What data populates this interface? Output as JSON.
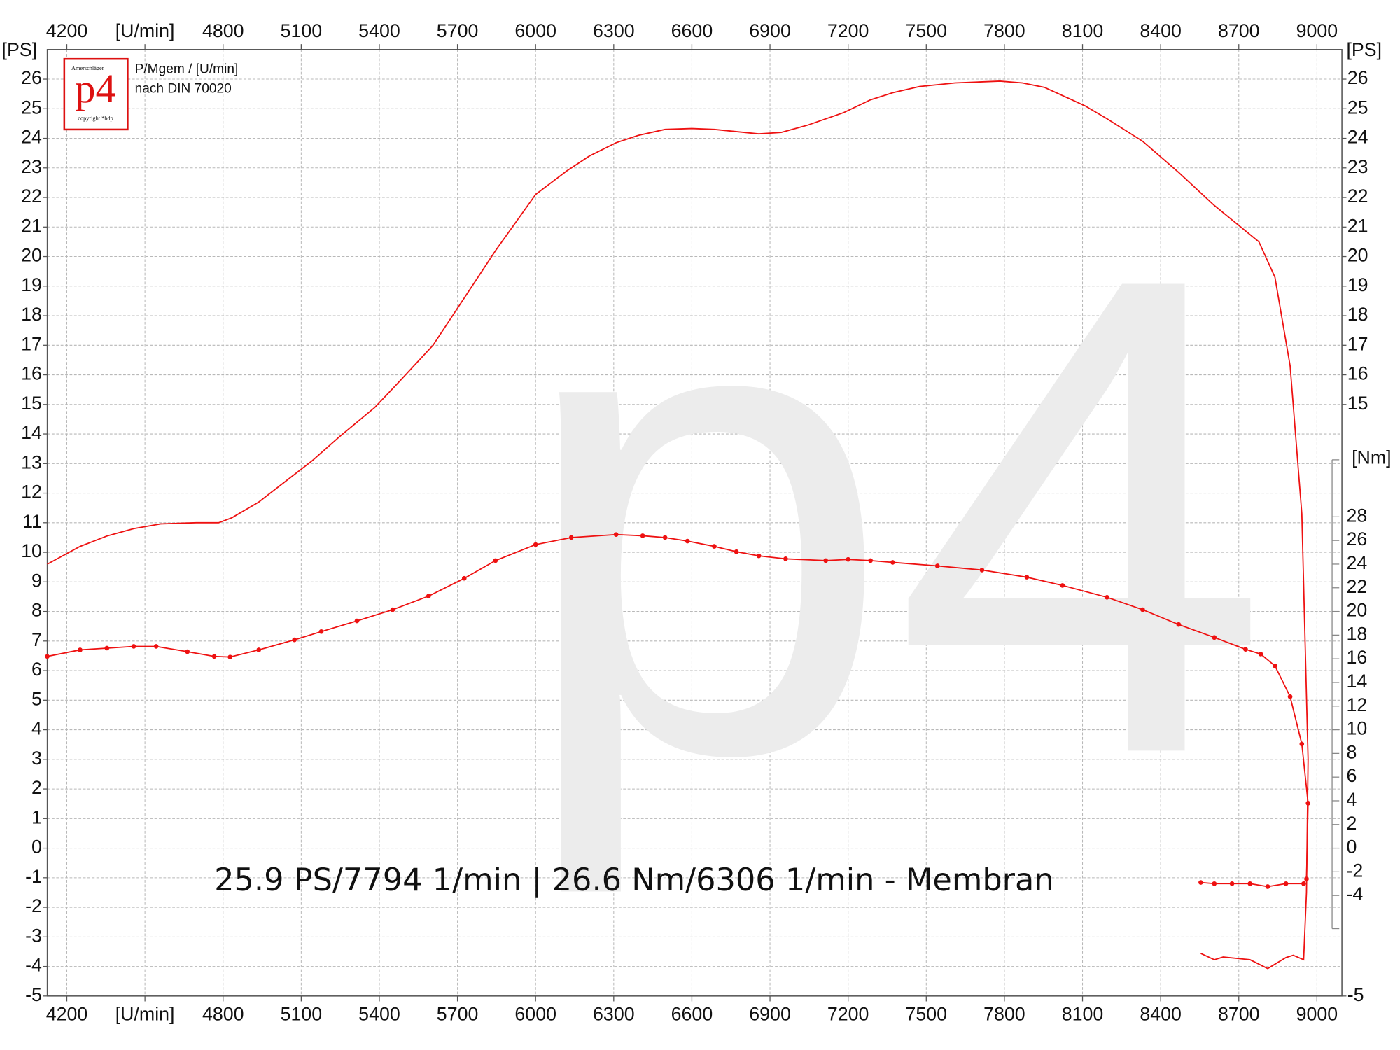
{
  "chart_data": {
    "type": "line",
    "ylabel": "[PS]",
    "y2label": "[Nm]",
    "subtitle_lines": [
      "P/Mgem / [U/min]",
      "nach DIN 70020"
    ],
    "logo": {
      "brand": "p4",
      "name": "Amerschläger",
      "copyright": "copyright *hdp"
    },
    "watermark": "p4",
    "annotation": "25.9 PS/7794 1/min | 26.6 Nm/6306 1/min - Membran",
    "xlim": [
      4125,
      9096
    ],
    "xticks": [
      4200,
      {
        "value": 4500,
        "label": "[U/min]"
      },
      4800,
      5100,
      5400,
      5700,
      6000,
      6300,
      6600,
      6900,
      7200,
      7500,
      7800,
      8100,
      8400,
      8700,
      9000
    ],
    "ylim": [
      -5,
      27
    ],
    "yticks": [
      -5,
      -4,
      -3,
      -2,
      -1,
      0,
      1,
      2,
      3,
      4,
      5,
      6,
      7,
      8,
      9,
      10,
      11,
      12,
      13,
      14,
      15,
      16,
      17,
      18,
      19,
      20,
      21,
      22,
      23,
      24,
      25,
      26
    ],
    "right_yticks": [
      -5,
      15,
      16,
      17,
      18,
      19,
      20,
      21,
      22,
      23,
      24,
      25,
      26
    ],
    "y2lim": [
      -12.5,
      67.5
    ],
    "y2ticks": [
      -4,
      -2,
      0,
      2,
      4,
      6,
      8,
      10,
      12,
      14,
      16,
      18,
      20,
      22,
      24,
      26,
      28
    ],
    "grid": true,
    "series": [
      {
        "name": "P",
        "color": "#ee1111",
        "marker": false,
        "x": [
          4125,
          4251,
          4354,
          4457,
          4560,
          4697,
          4783,
          4834,
          4937,
          5040,
          5143,
          5246,
          5383,
          5469,
          5606,
          5726,
          5846,
          6000,
          6120,
          6206,
          6309,
          6394,
          6497,
          6600,
          6686,
          6857,
          6943,
          7046,
          7183,
          7286,
          7371,
          7474,
          7611,
          7783,
          7869,
          7954,
          8109,
          8194,
          8331,
          8469,
          8606,
          8777,
          8839,
          8897,
          8942,
          8966,
          8960,
          8949,
          8909,
          8881,
          8811,
          8743,
          8640,
          8606,
          8554
        ],
        "values": [
          9.6,
          10.2,
          10.55,
          10.8,
          10.96,
          11.0,
          11.0,
          11.17,
          11.7,
          12.4,
          13.1,
          13.9,
          14.9,
          15.7,
          17.0,
          18.6,
          20.2,
          22.1,
          22.9,
          23.4,
          23.85,
          24.1,
          24.3,
          24.33,
          24.3,
          24.15,
          24.2,
          24.45,
          24.87,
          25.3,
          25.54,
          25.75,
          25.87,
          25.93,
          25.87,
          25.72,
          25.1,
          24.66,
          23.9,
          22.85,
          21.73,
          20.5,
          19.3,
          16.3,
          11.3,
          3.0,
          -1.5,
          -3.77,
          -3.62,
          -3.7,
          -4.07,
          -3.77,
          -3.68,
          -3.77,
          -3.56
        ]
      },
      {
        "name": "Mgem",
        "color": "#ee1111",
        "marker": true,
        "axis": "y2",
        "x": [
          4125,
          4251,
          4354,
          4457,
          4543,
          4663,
          4766,
          4827,
          4937,
          5074,
          5177,
          5314,
          5451,
          5589,
          5726,
          5846,
          6000,
          6137,
          6309,
          6411,
          6497,
          6583,
          6686,
          6771,
          6857,
          6960,
          7114,
          7200,
          7286,
          7371,
          7543,
          7714,
          7886,
          8023,
          8194,
          8331,
          8469,
          8606,
          8726,
          8784,
          8839,
          8897,
          8942,
          8966,
          8960,
          8949,
          8881,
          8811,
          8743,
          8674,
          8606,
          8554
        ],
        "values": [
          16.2,
          16.75,
          16.9,
          17.05,
          17.05,
          16.6,
          16.2,
          16.15,
          16.75,
          17.6,
          18.3,
          19.2,
          20.15,
          21.3,
          22.8,
          24.3,
          25.65,
          26.25,
          26.5,
          26.4,
          26.25,
          25.95,
          25.5,
          25.05,
          24.7,
          24.45,
          24.3,
          24.4,
          24.3,
          24.15,
          23.85,
          23.5,
          22.9,
          22.2,
          21.2,
          20.15,
          18.9,
          17.8,
          16.8,
          16.4,
          15.4,
          12.8,
          8.8,
          3.8,
          -2.6,
          -3.0,
          -3.0,
          -3.25,
          -3.0,
          -3.0,
          -3.0,
          -2.9
        ]
      }
    ]
  }
}
